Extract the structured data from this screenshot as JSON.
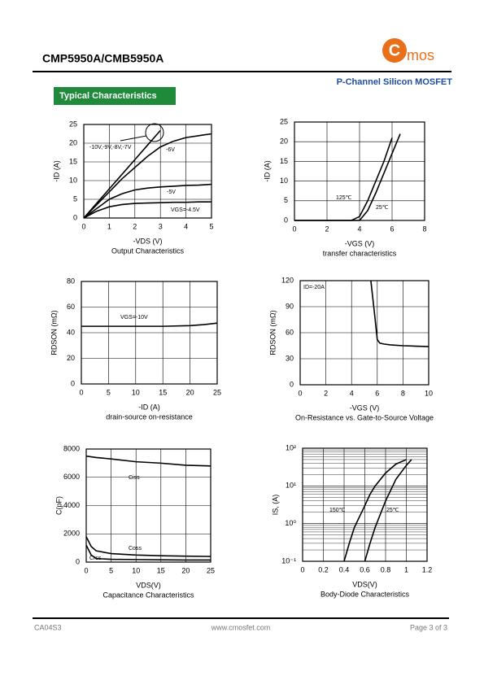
{
  "header": {
    "title": "CMP5950A/CMB5950A",
    "logo_initial": "C",
    "logo_text": "mos",
    "subtitle": "P-Channel Silicon MOSFET",
    "section": "Typical Characteristics"
  },
  "footer": {
    "code": "CA04S3",
    "url": "www.cmosfet.com",
    "page": "Page 3 of  3"
  },
  "chart_data": [
    {
      "type": "line",
      "title": "Output Characteristics",
      "xlabel": "-VDS (V)",
      "ylabel": "-ID (A)",
      "x": [
        0,
        0.5,
        1,
        1.5,
        2,
        2.5,
        3,
        3.5,
        4,
        4.5,
        5
      ],
      "xlim": [
        0,
        5
      ],
      "ylim": [
        0,
        25
      ],
      "xticks": [
        0,
        1,
        2,
        3,
        4,
        5
      ],
      "yticks": [
        0,
        5,
        10,
        15,
        20,
        25
      ],
      "grid": true,
      "series": [
        {
          "name": "-10V,-9V,-8V,-7V",
          "color": "#000000",
          "values": [
            0,
            3.9,
            7.8,
            11.7,
            15.6,
            19.5,
            23.4,
            null,
            null,
            null,
            null
          ]
        },
        {
          "name": "-6V",
          "color": "#000000",
          "values": [
            0,
            3.5,
            7,
            10.5,
            13.5,
            16.5,
            19,
            20.5,
            21.5,
            22,
            22.5
          ]
        },
        {
          "name": "-5V",
          "color": "#000000",
          "values": [
            0,
            2.5,
            5,
            6.5,
            7.5,
            8,
            8.3,
            8.5,
            8.7,
            8.8,
            9
          ]
        },
        {
          "name": "VGS=-4.5V",
          "color": "#000000",
          "values": [
            0,
            1.8,
            3,
            3.6,
            3.9,
            4,
            4.1,
            4.2,
            4.2,
            4.3,
            4.3
          ]
        }
      ]
    },
    {
      "type": "line",
      "title": "transfer characteristics",
      "xlabel": "-VGS (V)",
      "ylabel": "-ID (A)",
      "x": [
        0,
        1,
        2,
        3,
        3.5,
        4,
        4.5,
        5,
        5.5,
        6,
        6.5,
        7
      ],
      "xlim": [
        0,
        8
      ],
      "ylim": [
        0,
        25
      ],
      "xticks": [
        0,
        2,
        4,
        6,
        8
      ],
      "yticks": [
        0,
        5,
        10,
        15,
        20,
        25
      ],
      "grid": true,
      "series": [
        {
          "name": "125℃",
          "color": "#000000",
          "values": [
            0,
            0,
            0,
            0,
            0,
            1,
            5,
            10,
            15,
            21,
            null,
            null
          ]
        },
        {
          "name": "25℃",
          "color": "#000000",
          "values": [
            0,
            0,
            0,
            0,
            0,
            0,
            2.5,
            7,
            12,
            17,
            22,
            null
          ]
        }
      ]
    },
    {
      "type": "line",
      "title": "drain-source on-resistance",
      "xlabel": "-ID (A)",
      "ylabel": "RDSON (mΩ)",
      "x": [
        0,
        5,
        10,
        15,
        20,
        22.5,
        25
      ],
      "xlim": [
        0,
        25
      ],
      "ylim": [
        0,
        80
      ],
      "xticks": [
        0,
        5,
        10,
        15,
        20,
        25
      ],
      "yticks": [
        0,
        20,
        40,
        60,
        80
      ],
      "grid": true,
      "series": [
        {
          "name": "VGS=-10V",
          "color": "#000000",
          "values": [
            45,
            45,
            45,
            45,
            45.5,
            46.3,
            47.5
          ]
        }
      ]
    },
    {
      "type": "line",
      "title": "On-Resistance vs. Gate-to-Source Voltage",
      "xlabel": "-VGS (V)",
      "ylabel": "RDSON (mΩ)",
      "x": [
        5.5,
        5.8,
        6,
        6.2,
        6.5,
        7,
        8,
        9,
        10
      ],
      "xlim": [
        0,
        10
      ],
      "ylim": [
        0,
        120
      ],
      "xticks": [
        0,
        2,
        4,
        6,
        8,
        10
      ],
      "yticks": [
        0,
        30,
        60,
        90,
        120
      ],
      "grid": true,
      "series": [
        {
          "name": "ID=-20A",
          "color": "#000000",
          "values": [
            120,
            80,
            52,
            48,
            47,
            46,
            45,
            44.5,
            44
          ]
        }
      ]
    },
    {
      "type": "line",
      "title": "Capacitance Characteristics",
      "xlabel": "VDS(V)",
      "ylabel": "C(pF)",
      "x": [
        0,
        1,
        2,
        5,
        10,
        15,
        20,
        25
      ],
      "xlim": [
        0,
        25
      ],
      "ylim": [
        0,
        8000
      ],
      "xticks": [
        0,
        5,
        10,
        15,
        20,
        25
      ],
      "yticks": [
        0,
        2000,
        4000,
        6000,
        8000
      ],
      "grid": true,
      "series": [
        {
          "name": "Ciss",
          "color": "#000000",
          "values": [
            7500,
            7450,
            7400,
            7300,
            7100,
            7000,
            6850,
            6800
          ]
        },
        {
          "name": "Coss",
          "color": "#000000",
          "values": [
            1800,
            1100,
            800,
            600,
            500,
            450,
            420,
            400
          ]
        },
        {
          "name": "Crss",
          "color": "#000000",
          "values": [
            1200,
            500,
            250,
            200,
            180,
            160,
            150,
            150
          ]
        }
      ]
    },
    {
      "type": "line",
      "title": "Body-Diode Characteristics",
      "xlabel": "VDS(V)",
      "ylabel": "IS, (A)",
      "x": [
        0.4,
        0.45,
        0.5,
        0.6,
        0.65,
        0.7,
        0.8,
        0.9,
        1,
        1.05
      ],
      "xlim": [
        0,
        1.2
      ],
      "ylim": [
        0.1,
        100
      ],
      "log_y": true,
      "xticks": [
        0,
        0.2,
        0.4,
        0.6,
        0.8,
        1,
        1.2
      ],
      "yticks": [
        {
          "value": 0.1,
          "label": "10⁻¹"
        },
        {
          "value": 1,
          "label": "10⁰"
        },
        {
          "value": 10,
          "label": "10¹"
        },
        {
          "value": 100,
          "label": "10²"
        }
      ],
      "grid": true,
      "series": [
        {
          "name": "150℃",
          "color": "#000000",
          "values": [
            0.1,
            0.3,
            0.8,
            3,
            6,
            10,
            22,
            38,
            50,
            null
          ]
        },
        {
          "name": "25℃",
          "color": "#000000",
          "values": [
            null,
            null,
            null,
            0.1,
            0.3,
            0.8,
            4,
            15,
            35,
            50
          ]
        }
      ]
    }
  ]
}
